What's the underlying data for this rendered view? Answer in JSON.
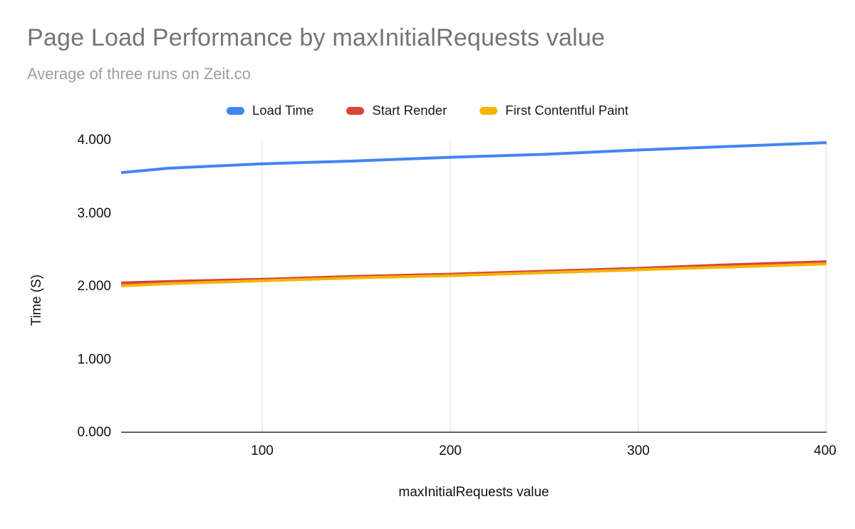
{
  "title": "Page Load Performance by maxInitialRequests value",
  "subtitle": "Average of three runs on Zeit.co",
  "legend": [
    {
      "label": "Load Time",
      "color": "#4285F4"
    },
    {
      "label": "Start Render",
      "color": "#DB4437"
    },
    {
      "label": "First Contentful Paint",
      "color": "#F4B400"
    }
  ],
  "chart_data": {
    "type": "line",
    "title": "Page Load Performance by maxInitialRequests value",
    "subtitle": "Average of three runs on Zeit.co",
    "xlabel": "maxInitialRequests value",
    "ylabel": "Time (S)",
    "xlim": [
      25,
      400
    ],
    "ylim": [
      0,
      4
    ],
    "grid": "vertical-only",
    "legend_position": "top",
    "x": [
      25,
      50,
      100,
      150,
      200,
      250,
      300,
      350,
      400
    ],
    "series": [
      {
        "name": "Load Time",
        "color": "#4285F4",
        "values": [
          3.56,
          3.62,
          3.68,
          3.72,
          3.77,
          3.81,
          3.87,
          3.92,
          3.97
        ]
      },
      {
        "name": "Start Render",
        "color": "#DB4437",
        "values": [
          2.05,
          2.07,
          2.1,
          2.14,
          2.17,
          2.21,
          2.25,
          2.3,
          2.34
        ]
      },
      {
        "name": "First Contentful Paint",
        "color": "#F4B400",
        "values": [
          2.01,
          2.04,
          2.08,
          2.12,
          2.15,
          2.19,
          2.23,
          2.27,
          2.31
        ]
      }
    ],
    "x_ticks": [
      100,
      200,
      300,
      400
    ],
    "x_tick_labels": [
      "100",
      "200",
      "300",
      "400"
    ],
    "y_ticks": [
      0,
      1,
      2,
      3,
      4
    ],
    "y_tick_labels": [
      "0.000",
      "1.000",
      "2.000",
      "3.000",
      "4.000"
    ],
    "gridline_color": "#dadce0",
    "baseline_color": "#333333"
  }
}
